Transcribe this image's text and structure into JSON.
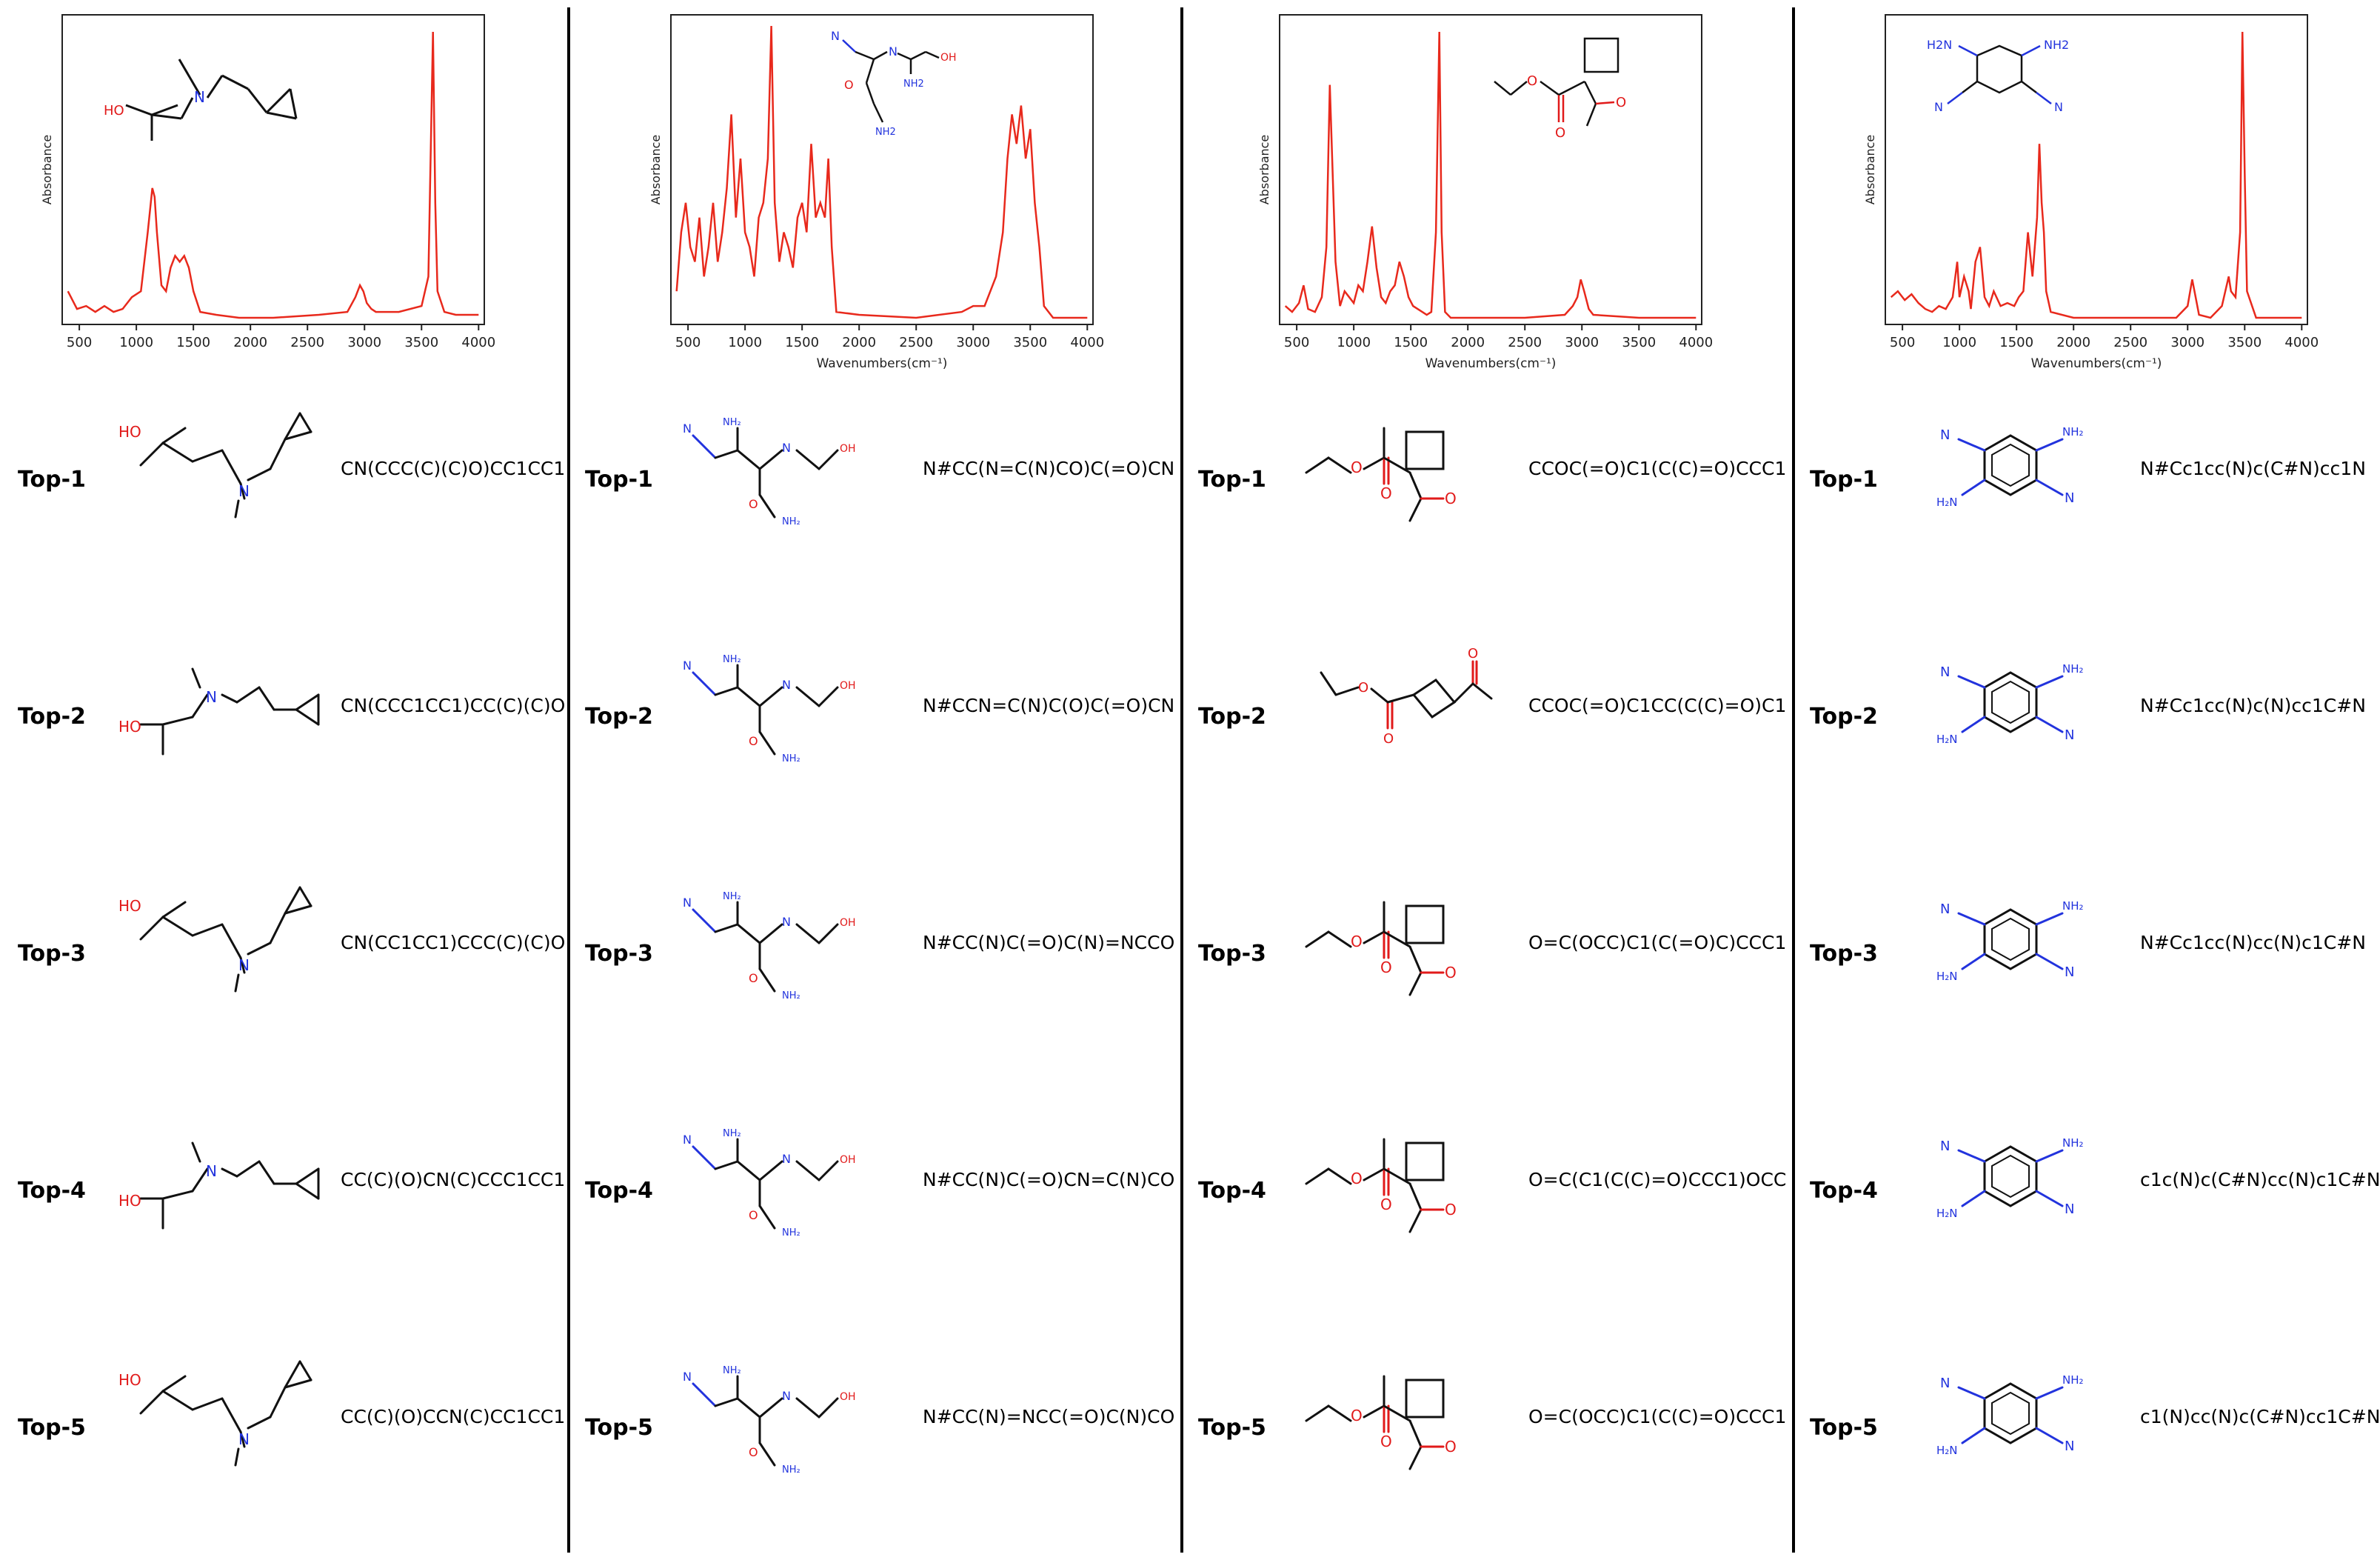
{
  "colors": {
    "spectrum": "#e8291c",
    "heteroN": "#2233dd",
    "heteroO": "#e11a1a",
    "bond": "#111111"
  },
  "axis": {
    "ylabel": "Absorbance",
    "xlabel": "Wavenumbers(cm⁻¹)",
    "xticks": [
      500,
      1000,
      1500,
      2000,
      2500,
      3000,
      3500,
      4000
    ]
  },
  "chart_data": [
    {
      "type": "line",
      "title": "",
      "xlabel": "",
      "ylabel": "Absorbance",
      "xlim": [
        350,
        4050
      ],
      "ylim": [
        0,
        1
      ],
      "series": [
        {
          "x": [
            400,
            480,
            560,
            640,
            720,
            800,
            880,
            960,
            1040,
            1100,
            1140,
            1160,
            1180,
            1220,
            1260,
            1300,
            1340,
            1380,
            1420,
            1460,
            1500,
            1560,
            1700,
            1900,
            2200,
            2600,
            2850,
            2920,
            2960,
            2990,
            3020,
            3060,
            3100,
            3300,
            3500,
            3560,
            3600,
            3620,
            3640,
            3700,
            3800,
            4000
          ],
          "values": [
            0.1,
            0.04,
            0.05,
            0.03,
            0.05,
            0.03,
            0.04,
            0.08,
            0.1,
            0.3,
            0.45,
            0.42,
            0.3,
            0.12,
            0.1,
            0.18,
            0.22,
            0.2,
            0.22,
            0.18,
            0.1,
            0.03,
            0.02,
            0.01,
            0.01,
            0.02,
            0.03,
            0.08,
            0.12,
            0.1,
            0.06,
            0.04,
            0.03,
            0.03,
            0.05,
            0.15,
            0.98,
            0.4,
            0.1,
            0.03,
            0.02,
            0.02
          ]
        }
      ]
    },
    {
      "type": "line",
      "title": "",
      "xlabel": "Wavenumbers(cm⁻¹)",
      "ylabel": "Absorbance",
      "xlim": [
        350,
        4050
      ],
      "ylim": [
        0,
        1
      ],
      "series": [
        {
          "x": [
            400,
            440,
            480,
            520,
            560,
            600,
            640,
            680,
            720,
            760,
            800,
            840,
            880,
            920,
            960,
            1000,
            1040,
            1080,
            1120,
            1160,
            1200,
            1230,
            1260,
            1300,
            1340,
            1380,
            1420,
            1460,
            1500,
            1540,
            1580,
            1620,
            1660,
            1700,
            1730,
            1760,
            1800,
            2000,
            2500,
            2900,
            3000,
            3100,
            3200,
            3260,
            3300,
            3340,
            3380,
            3420,
            3460,
            3500,
            3540,
            3580,
            3620,
            3700,
            4000
          ],
          "values": [
            0.1,
            0.3,
            0.4,
            0.25,
            0.2,
            0.35,
            0.15,
            0.25,
            0.4,
            0.2,
            0.3,
            0.45,
            0.7,
            0.35,
            0.55,
            0.3,
            0.25,
            0.15,
            0.35,
            0.4,
            0.55,
            1.0,
            0.4,
            0.2,
            0.3,
            0.25,
            0.18,
            0.35,
            0.4,
            0.3,
            0.6,
            0.35,
            0.4,
            0.35,
            0.55,
            0.25,
            0.03,
            0.02,
            0.01,
            0.03,
            0.05,
            0.05,
            0.15,
            0.3,
            0.55,
            0.7,
            0.6,
            0.73,
            0.55,
            0.65,
            0.4,
            0.25,
            0.05,
            0.01,
            0.01
          ]
        }
      ]
    },
    {
      "type": "line",
      "title": "",
      "xlabel": "Wavenumbers(cm⁻¹)",
      "ylabel": "Absorbance",
      "xlim": [
        350,
        4050
      ],
      "ylim": [
        0,
        1
      ],
      "series": [
        {
          "x": [
            400,
            460,
            520,
            560,
            600,
            660,
            720,
            760,
            790,
            840,
            880,
            920,
            960,
            1000,
            1040,
            1080,
            1120,
            1160,
            1200,
            1240,
            1280,
            1320,
            1360,
            1400,
            1440,
            1480,
            1520,
            1560,
            1600,
            1640,
            1680,
            1720,
            1750,
            1770,
            1800,
            1850,
            2000,
            2500,
            2850,
            2920,
            2960,
            2990,
            3020,
            3060,
            3100,
            3500,
            4000
          ],
          "values": [
            0.05,
            0.03,
            0.06,
            0.12,
            0.04,
            0.03,
            0.08,
            0.25,
            0.8,
            0.2,
            0.05,
            0.1,
            0.08,
            0.06,
            0.12,
            0.1,
            0.2,
            0.32,
            0.18,
            0.08,
            0.06,
            0.1,
            0.12,
            0.2,
            0.15,
            0.08,
            0.05,
            0.04,
            0.03,
            0.02,
            0.03,
            0.3,
            0.98,
            0.3,
            0.03,
            0.01,
            0.01,
            0.01,
            0.02,
            0.05,
            0.08,
            0.14,
            0.1,
            0.04,
            0.02,
            0.01,
            0.01
          ]
        }
      ]
    },
    {
      "type": "line",
      "title": "",
      "xlabel": "Wavenumbers(cm⁻¹)",
      "ylabel": "Absorbance",
      "xlim": [
        350,
        4050
      ],
      "ylim": [
        0,
        1
      ],
      "series": [
        {
          "x": [
            400,
            460,
            520,
            580,
            640,
            700,
            760,
            820,
            880,
            940,
            980,
            1000,
            1040,
            1080,
            1100,
            1140,
            1180,
            1220,
            1260,
            1300,
            1360,
            1420,
            1480,
            1520,
            1560,
            1600,
            1640,
            1680,
            1700,
            1720,
            1740,
            1760,
            1800,
            2000,
            2500,
            2900,
            3000,
            3040,
            3060,
            3100,
            3200,
            3300,
            3360,
            3380,
            3420,
            3460,
            3480,
            3500,
            3520,
            3600,
            4000
          ],
          "values": [
            0.08,
            0.1,
            0.07,
            0.09,
            0.06,
            0.04,
            0.03,
            0.05,
            0.04,
            0.08,
            0.2,
            0.08,
            0.15,
            0.1,
            0.04,
            0.2,
            0.25,
            0.08,
            0.05,
            0.1,
            0.05,
            0.06,
            0.05,
            0.08,
            0.1,
            0.3,
            0.15,
            0.35,
            0.6,
            0.4,
            0.3,
            0.1,
            0.03,
            0.01,
            0.01,
            0.01,
            0.05,
            0.14,
            0.1,
            0.02,
            0.01,
            0.05,
            0.15,
            0.1,
            0.08,
            0.3,
            0.98,
            0.5,
            0.1,
            0.01,
            0.01
          ]
        }
      ]
    }
  ],
  "columns": [
    {
      "id": "c1",
      "spectrum_molecule_labels": {
        "oh": "HO",
        "n": "N"
      },
      "candidates": [
        {
          "rank": "Top-1",
          "smiles": "CN(CCC(C)(C)O)CC1CC1",
          "labels": {
            "oh": "HO",
            "n": "N"
          }
        },
        {
          "rank": "Top-2",
          "smiles": "CN(CCC1CC1)CC(C)(C)O",
          "labels": {
            "oh": "HO",
            "n": "N"
          }
        },
        {
          "rank": "Top-3",
          "smiles": "CN(CC1CC1)CCC(C)(C)O",
          "labels": {
            "oh": "HO",
            "n": "N"
          }
        },
        {
          "rank": "Top-4",
          "smiles": "CC(C)(O)CN(C)CCC1CC1",
          "labels": {
            "oh": "HO",
            "n": "N"
          }
        },
        {
          "rank": "Top-5",
          "smiles": "CC(C)(O)CCN(C)CC1CC1",
          "labels": {
            "oh": "HO",
            "n": "N"
          }
        }
      ]
    },
    {
      "id": "c2",
      "spectrum_molecule_labels": {
        "n": "N",
        "oh": "OH",
        "o": "O",
        "nh2": "NH2"
      },
      "candidates": [
        {
          "rank": "Top-1",
          "smiles": "N#CC(N=C(N)CO)C(=O)CN"
        },
        {
          "rank": "Top-2",
          "smiles": "N#CCN=C(N)C(O)C(=O)CN"
        },
        {
          "rank": "Top-3",
          "smiles": "N#CC(N)C(=O)C(N)=NCCO"
        },
        {
          "rank": "Top-4",
          "smiles": "N#CC(N)C(=O)CN=C(N)CO"
        },
        {
          "rank": "Top-5",
          "smiles": "N#CC(N)=NCC(=O)C(N)CO"
        }
      ]
    },
    {
      "id": "c3",
      "spectrum_molecule_labels": {
        "o": "O"
      },
      "candidates": [
        {
          "rank": "Top-1",
          "smiles": "CCOC(=O)C1(C(C)=O)CCC1"
        },
        {
          "rank": "Top-2",
          "smiles": "CCOC(=O)C1CC(C(C)=O)C1"
        },
        {
          "rank": "Top-3",
          "smiles": "O=C(OCC)C1(C(=O)C)CCC1"
        },
        {
          "rank": "Top-4",
          "smiles": "O=C(C1(C(C)=O)CCC1)OCC"
        },
        {
          "rank": "Top-5",
          "smiles": "O=C(OCC)C1(C(C)=O)CCC1"
        }
      ]
    },
    {
      "id": "c4",
      "spectrum_molecule_labels": {
        "n": "N",
        "nh2": "NH2",
        "h2n": "H2N"
      },
      "candidates": [
        {
          "rank": "Top-1",
          "smiles": "N#Cc1cc(N)c(C#N)cc1N"
        },
        {
          "rank": "Top-2",
          "smiles": "N#Cc1cc(N)c(N)cc1C#N"
        },
        {
          "rank": "Top-3",
          "smiles": "N#Cc1cc(N)cc(N)c1C#N"
        },
        {
          "rank": "Top-4",
          "smiles": "c1c(N)c(C#N)cc(N)c1C#N"
        },
        {
          "rank": "Top-5",
          "smiles": "c1(N)cc(N)c(C#N)cc1C#N"
        }
      ]
    }
  ]
}
